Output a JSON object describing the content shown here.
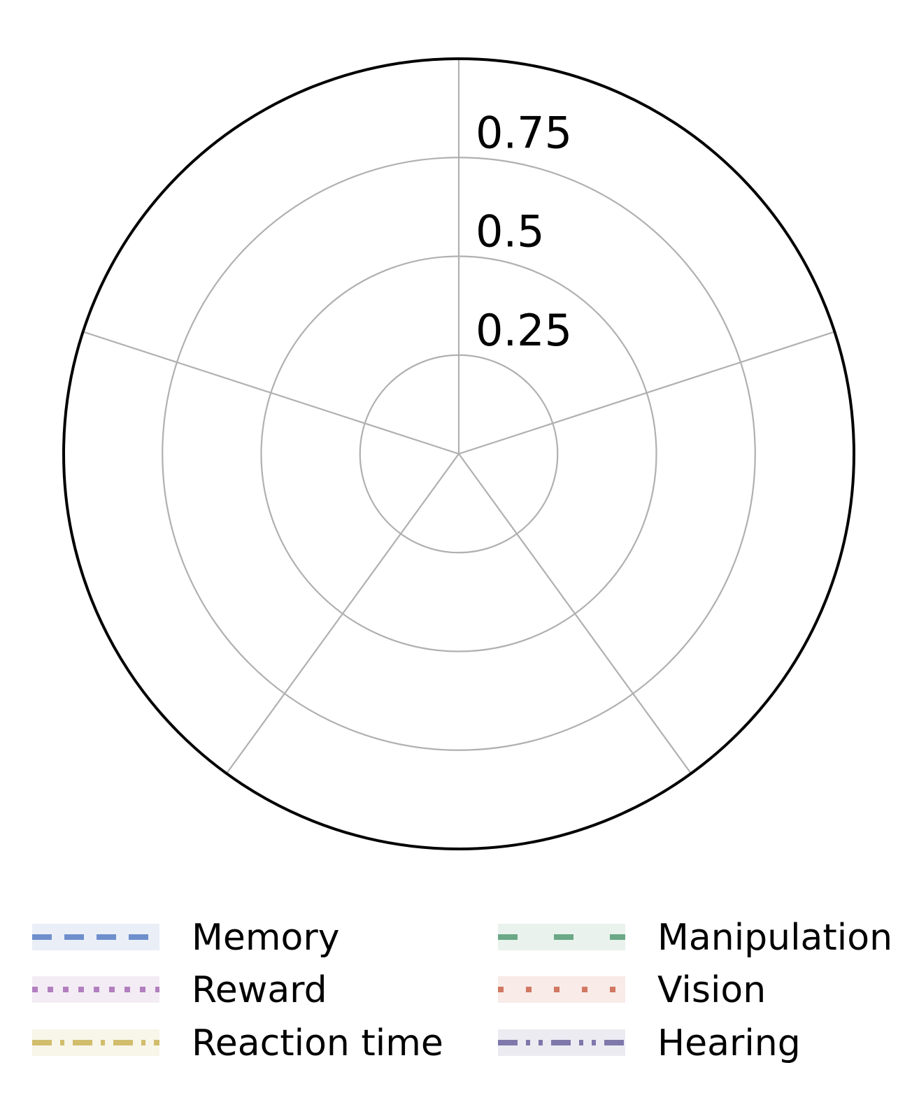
{
  "chart_data": {
    "type": "radar",
    "title": "",
    "axes_count": 5,
    "rlim": [
      0,
      1.0
    ],
    "radial_ticks": [
      0.25,
      0.5,
      0.75,
      1.0
    ],
    "radial_tick_labels": [
      "0.25",
      "0.5",
      "0.75"
    ],
    "grid": true,
    "legend_position": "bottom",
    "legend_columns": 2,
    "series": [
      {
        "name": "Memory",
        "color": "#6f8fcc",
        "linestyle": "dashed",
        "values": []
      },
      {
        "name": "Reward",
        "color": "#b27fbf",
        "linestyle": "dotted",
        "values": []
      },
      {
        "name": "Reaction time",
        "color": "#d1bd6c",
        "linestyle": "dashdot",
        "values": []
      },
      {
        "name": "Manipulation",
        "color": "#6aa886",
        "linestyle": "loosely-dashed",
        "values": []
      },
      {
        "name": "Vision",
        "color": "#d27862",
        "linestyle": "loosely-dotted",
        "values": []
      },
      {
        "name": "Hearing",
        "color": "#7f78ab",
        "linestyle": "dashdotdot",
        "values": []
      }
    ]
  }
}
